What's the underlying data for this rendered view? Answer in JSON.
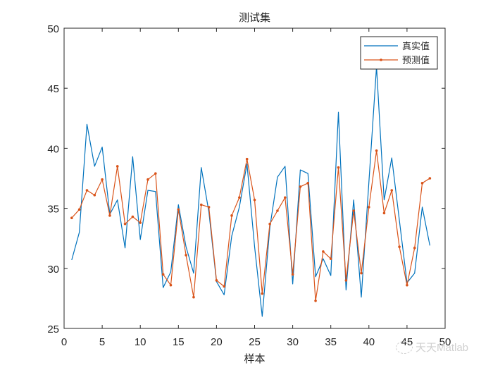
{
  "chart_data": {
    "type": "line",
    "title": "测试集",
    "xlabel": "样本",
    "ylabel": "",
    "xlim": [
      0,
      50
    ],
    "ylim": [
      25,
      50
    ],
    "xticks": [
      0,
      5,
      10,
      15,
      20,
      25,
      30,
      35,
      40,
      45,
      50
    ],
    "yticks": [
      25,
      30,
      35,
      40,
      45,
      50
    ],
    "grid": false,
    "legend_position": "upper right",
    "x": [
      1,
      2,
      3,
      4,
      5,
      6,
      7,
      8,
      9,
      10,
      11,
      12,
      13,
      14,
      15,
      16,
      17,
      18,
      19,
      20,
      21,
      22,
      23,
      24,
      25,
      26,
      27,
      28,
      29,
      30,
      31,
      32,
      33,
      34,
      35,
      36,
      37,
      38,
      39,
      40,
      41,
      42,
      43,
      44,
      45,
      46,
      47,
      48
    ],
    "series": [
      {
        "name": "真实值",
        "color": "#0072BD",
        "marker": "none",
        "values": [
          30.7,
          33.0,
          42.0,
          38.5,
          40.1,
          34.5,
          35.7,
          31.7,
          39.3,
          32.4,
          36.5,
          36.4,
          28.4,
          29.7,
          35.3,
          31.8,
          29.6,
          38.4,
          34.7,
          28.9,
          27.8,
          32.7,
          35.1,
          38.7,
          31.8,
          26.0,
          33.4,
          37.6,
          38.5,
          28.7,
          38.2,
          37.9,
          29.3,
          30.8,
          29.4,
          43.0,
          28.2,
          35.7,
          27.6,
          37.2,
          46.8,
          35.7,
          39.2,
          34.0,
          28.8,
          29.6,
          35.1,
          31.9
        ]
      },
      {
        "name": "预测值",
        "color": "#D95319",
        "marker": "dot",
        "values": [
          34.2,
          34.9,
          36.5,
          36.1,
          37.4,
          34.4,
          38.5,
          33.7,
          34.3,
          33.8,
          37.4,
          37.9,
          29.5,
          28.6,
          34.9,
          31.1,
          27.6,
          35.3,
          35.1,
          29.0,
          28.5,
          34.4,
          35.9,
          39.1,
          35.7,
          27.9,
          33.7,
          34.8,
          35.9,
          29.5,
          36.8,
          37.1,
          27.3,
          31.4,
          30.8,
          38.4,
          29.0,
          34.8,
          29.6,
          35.1,
          39.8,
          34.6,
          36.5,
          31.8,
          28.6,
          31.7,
          37.1,
          37.5
        ]
      }
    ]
  },
  "watermark": {
    "text": "天天Matlab"
  }
}
